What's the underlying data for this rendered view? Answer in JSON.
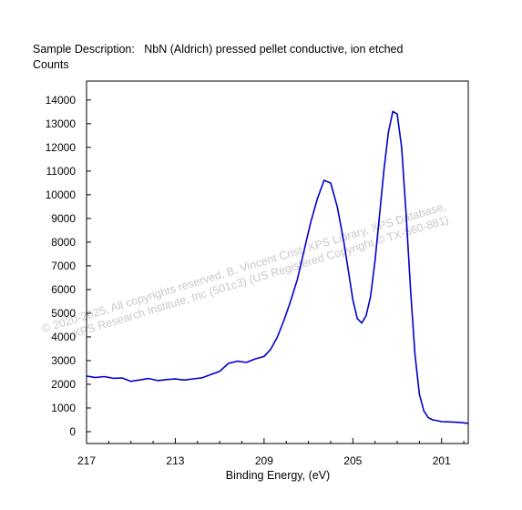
{
  "header": {
    "sample_description": "Sample Description:   NbN (Aldrich) pressed pellet conductive, ion etched",
    "y_axis_label": "Counts"
  },
  "watermark": {
    "line1": "©  2020-2025,  All copyrights reserved,   B. Vincent Crist,  XPS Library, XPS Database,",
    "line2": "XPS Research Institute, Inc (501c3)   (US Registered Copyright © TX-560-881)"
  },
  "chart_data": {
    "type": "line",
    "title": "",
    "xlabel": "Binding Energy, (eV)",
    "ylabel": "Counts",
    "xlim": [
      217,
      199.8
    ],
    "ylim": [
      -500,
      14800
    ],
    "x_reversed": true,
    "grid": false,
    "x_ticks": [
      217,
      213,
      209,
      205,
      201
    ],
    "x_tick_labels": [
      "217",
      "213",
      "209",
      "205",
      "201"
    ],
    "y_ticks": [
      0,
      1000,
      2000,
      3000,
      4000,
      5000,
      6000,
      7000,
      8000,
      9000,
      10000,
      11000,
      12000,
      13000,
      14000
    ],
    "y_tick_labels": [
      "0",
      "1000",
      "2000",
      "3000",
      "4000",
      "5000",
      "6000",
      "7000",
      "8000",
      "9000",
      "10000",
      "11000",
      "12000",
      "13000",
      "14000"
    ],
    "line_color": "#0000cc",
    "series": [
      {
        "x": [
          217.0,
          216.6,
          216.2,
          215.8,
          215.4,
          215.0,
          214.6,
          214.2,
          213.8,
          213.4,
          213.0,
          212.6,
          212.2,
          211.8,
          211.4,
          211.0,
          210.6,
          210.2,
          209.8,
          209.4,
          209.0,
          208.7,
          208.4,
          208.1,
          207.8,
          207.5,
          207.2,
          206.9,
          206.6,
          206.3,
          206.0,
          205.7,
          205.4,
          205.2,
          205.0,
          204.8,
          204.6,
          204.4,
          204.2,
          204.0,
          203.8,
          203.6,
          203.4,
          203.2,
          203.0,
          202.8,
          202.6,
          202.4,
          202.2,
          202.0,
          201.8,
          201.6,
          201.4,
          201.2,
          201.0,
          200.6,
          200.2,
          199.8
        ],
        "y": [
          2350,
          2300,
          2350,
          2280,
          2300,
          2150,
          2200,
          2250,
          2150,
          2180,
          2200,
          2150,
          2200,
          2250,
          2400,
          2550,
          2900,
          3000,
          2950,
          3100,
          3200,
          3500,
          4000,
          4700,
          5500,
          6400,
          7600,
          8800,
          9800,
          10600,
          10500,
          9500,
          8000,
          6800,
          5600,
          4800,
          4600,
          4900,
          5700,
          7200,
          9100,
          11000,
          12600,
          13500,
          13400,
          12000,
          9200,
          6000,
          3300,
          1600,
          900,
          600,
          500,
          450,
          400,
          380,
          360,
          350
        ]
      }
    ]
  }
}
